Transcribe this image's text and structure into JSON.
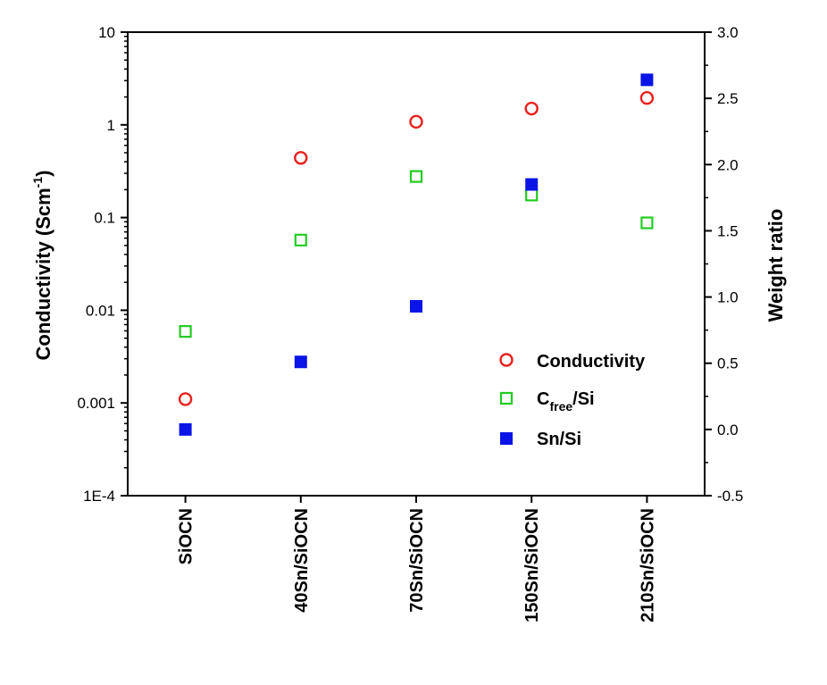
{
  "chart_data": {
    "type": "scatter",
    "categories": [
      "SiOCN",
      "40Sn/SiOCN",
      "70Sn/SiOCN",
      "150Sn/SiOCN",
      "210Sn/SiOCN"
    ],
    "y_left": {
      "label_main": "Conductivity (Scm",
      "label_sup": "-1",
      "label_close": ")",
      "scale": "log",
      "ylim": [
        0.0001,
        10
      ],
      "ticks": [
        0.0001,
        0.001,
        0.01,
        0.1,
        1,
        10
      ],
      "tick_labels": [
        "1E-4",
        "0.001",
        "0.01",
        "0.1",
        "1",
        "10"
      ]
    },
    "y_right": {
      "label": "Weight ratio",
      "scale": "linear",
      "ylim": [
        -0.5,
        3.0
      ],
      "ticks": [
        -0.5,
        0.0,
        0.5,
        1.0,
        1.5,
        2.0,
        2.5,
        3.0
      ],
      "tick_labels": [
        "-0.5",
        "0.0",
        "0.5",
        "1.0",
        "1.5",
        "2.0",
        "2.5",
        "3.0"
      ]
    },
    "series": [
      {
        "name": "Conductivity",
        "axis": "left",
        "marker": "open-circle",
        "color": "#e8211c",
        "values": [
          0.0011,
          0.44,
          1.08,
          1.5,
          1.95
        ]
      },
      {
        "name_main": "C",
        "name_sub": "free",
        "name_tail": "/Si",
        "axis": "right",
        "marker": "open-square",
        "color": "#22cc22",
        "values": [
          0.74,
          1.43,
          1.91,
          1.77,
          1.56
        ]
      },
      {
        "name": "Sn/Si",
        "axis": "right",
        "marker": "filled-square",
        "color": "#0a14e6",
        "values": [
          0.0,
          0.51,
          0.93,
          1.85,
          2.64
        ]
      }
    ],
    "legend_position": "lower-right",
    "grid": false
  }
}
